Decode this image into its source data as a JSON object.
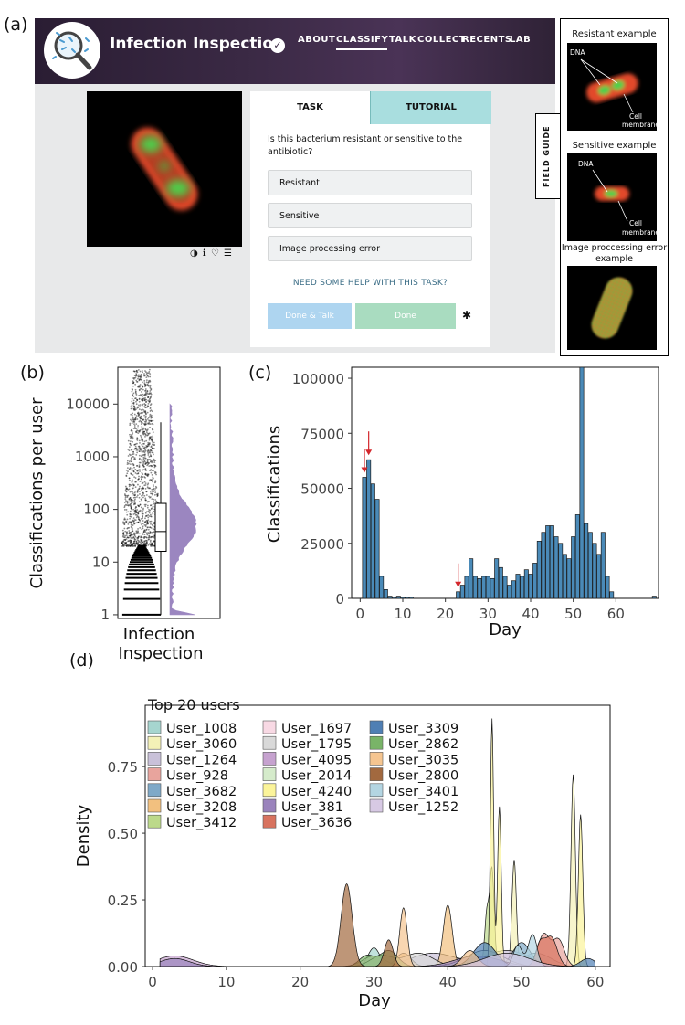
{
  "panel_labels": {
    "a": "(a)",
    "b": "(b)",
    "c": "(c)",
    "d": "(d)"
  },
  "zooniverse": {
    "project_title": "Infection Inspection",
    "nav": [
      "ABOUT",
      "CLASSIFY",
      "TALK",
      "COLLECT",
      "RECENTS",
      "LAB"
    ],
    "tabs": {
      "task": "TASK",
      "tutorial": "TUTORIAL"
    },
    "question": "Is this bacterium resistant or sensitive to the antibiotic?",
    "answers": [
      "Resistant",
      "Sensitive",
      "Image processing error"
    ],
    "help_link": "NEED SOME HELP WITH THIS TASK?",
    "done_talk": "Done & Talk",
    "done": "Done",
    "tools": "◑ ℹ ♡ ☰",
    "settings_icon": "✱",
    "field_guide_tab": "FIELD GUIDE",
    "field_guide": {
      "resistant_title": "Resistant example",
      "sensitive_title": "Sensitive example",
      "error_title": "Image proccessing error example",
      "dna_label": "DNA",
      "cell_label_1": "Cell",
      "cell_label_2": "membrane"
    },
    "colors": {
      "header": "#3a2944",
      "tutorial_tab": "#a9dedf",
      "done_talk": "#aed5f0",
      "done": "#a9dcc0"
    }
  },
  "chart_data": [
    {
      "id": "b",
      "type": "scatter",
      "xlabel": "Infection Inspection",
      "ylabel": "Classifications per user",
      "yscale": "log",
      "ylim": [
        1,
        50000
      ],
      "yticks": [
        "1",
        "10",
        "100",
        "1000",
        "10000"
      ],
      "box": {
        "min": 1,
        "q1": 16,
        "median": 38,
        "q3": 130,
        "max": 4500
      },
      "max_point": 45000,
      "color": "#9b86c0"
    },
    {
      "id": "c",
      "type": "bar",
      "xlabel": "Day",
      "ylabel": "Classifications",
      "ylim": [
        0,
        105000
      ],
      "xlim": [
        -2,
        70
      ],
      "xticks": [
        "0",
        "10",
        "20",
        "30",
        "40",
        "50",
        "60"
      ],
      "yticks": [
        "0",
        "25000",
        "50000",
        "75000",
        "100000"
      ],
      "color": "#4a8ab8",
      "arrow_days": [
        1,
        2,
        23
      ],
      "x": [
        1,
        2,
        3,
        4,
        5,
        6,
        7,
        8,
        9,
        10,
        11,
        12,
        23,
        24,
        25,
        26,
        27,
        28,
        29,
        30,
        31,
        32,
        33,
        34,
        35,
        36,
        37,
        38,
        39,
        40,
        41,
        42,
        43,
        44,
        45,
        46,
        47,
        48,
        49,
        50,
        51,
        52,
        53,
        54,
        55,
        56,
        57,
        58,
        59,
        69
      ],
      "values": [
        55000,
        63000,
        52000,
        45000,
        10000,
        4000,
        1000,
        500,
        1000,
        500,
        500,
        500,
        3000,
        6000,
        10000,
        18000,
        10000,
        9000,
        10000,
        10000,
        9000,
        18000,
        14000,
        10000,
        6000,
        8000,
        11000,
        10000,
        13000,
        11000,
        16000,
        26000,
        30000,
        33000,
        33000,
        28000,
        25000,
        20000,
        18000,
        28000,
        38000,
        105000,
        34000,
        30000,
        25000,
        20000,
        30000,
        10000,
        3000,
        1000
      ]
    },
    {
      "id": "d",
      "type": "area",
      "xlabel": "Day",
      "ylabel": "Density",
      "xlim": [
        -1,
        62
      ],
      "ylim": [
        0,
        0.98
      ],
      "xticks": [
        "0",
        "10",
        "20",
        "30",
        "40",
        "50",
        "60"
      ],
      "yticks": [
        "0.00",
        "0.25",
        "0.50",
        "0.75"
      ],
      "legend_title": "Top 20 users",
      "legend_position": "top-left",
      "series": [
        {
          "name": "User_1008",
          "color": "#a6d5cf",
          "peaks": [
            [
              30,
              0.07,
              0.8
            ],
            [
              52,
              0.05,
              2
            ]
          ]
        },
        {
          "name": "User_3060",
          "color": "#f3f1b7",
          "peaks": [
            [
              57,
              0.72,
              0.3
            ],
            [
              49,
              0.4,
              0.3
            ]
          ]
        },
        {
          "name": "User_1264",
          "color": "#c9c1d9",
          "peaks": [
            [
              38,
              0.05,
              3
            ],
            [
              48,
              0.06,
              3
            ]
          ]
        },
        {
          "name": "User_928",
          "color": "#e8a49d",
          "peaks": [
            [
              53,
              0.12,
              0.8
            ],
            [
              55,
              0.1,
              0.8
            ]
          ]
        },
        {
          "name": "User_3682",
          "color": "#7fa9c8",
          "peaks": [
            [
              50,
              0.09,
              1.2
            ]
          ]
        },
        {
          "name": "User_3208",
          "color": "#f2c07f",
          "peaks": [
            [
              40,
              0.23,
              0.6
            ],
            [
              34,
              0.05,
              1
            ]
          ]
        },
        {
          "name": "User_3412",
          "color": "#bcd98a",
          "peaks": [
            [
              46,
              0.36,
              0.3
            ],
            [
              45.3,
              0.2,
              0.3
            ]
          ]
        },
        {
          "name": "User_1697",
          "color": "#f8d9e4",
          "peaks": [
            [
              30,
              0.04,
              1.5
            ]
          ]
        },
        {
          "name": "User_1795",
          "color": "#d9d9d9",
          "peaks": [
            [
              36,
              0.05,
              2
            ],
            [
              31,
              0.04,
              1.5
            ]
          ]
        },
        {
          "name": "User_4095",
          "color": "#c6a2cf",
          "peaks": [
            [
              3,
              0.04,
              2.5
            ]
          ]
        },
        {
          "name": "User_2014",
          "color": "#d5ebcb",
          "peaks": [
            [
              45,
              0.06,
              2.5
            ]
          ]
        },
        {
          "name": "User_4240",
          "color": "#fbf49a",
          "peaks": [
            [
              46,
              0.93,
              0.22
            ],
            [
              58,
              0.57,
              0.3
            ],
            [
              47,
              0.6,
              0.25
            ]
          ]
        },
        {
          "name": "User_381",
          "color": "#9a83bc",
          "peaks": [
            [
              44,
              0.04,
              3
            ],
            [
              3,
              0.03,
              2
            ]
          ]
        },
        {
          "name": "User_3636",
          "color": "#d8735f",
          "peaks": [
            [
              54,
              0.11,
              0.8
            ],
            [
              52.5,
              0.08,
              0.6
            ]
          ]
        },
        {
          "name": "User_3309",
          "color": "#4f7fb4",
          "peaks": [
            [
              45,
              0.09,
              1.5
            ],
            [
              59,
              0.03,
              1
            ]
          ]
        },
        {
          "name": "User_2862",
          "color": "#79b468",
          "peaks": [
            [
              32,
              0.06,
              1.2
            ],
            [
              29,
              0.04,
              1
            ]
          ]
        },
        {
          "name": "User_3035",
          "color": "#f5c590",
          "peaks": [
            [
              34,
              0.22,
              0.5
            ],
            [
              43,
              0.06,
              1
            ]
          ]
        },
        {
          "name": "User_2800",
          "color": "#a2693f",
          "peaks": [
            [
              26.3,
              0.31,
              0.75
            ],
            [
              32,
              0.1,
              0.6
            ]
          ]
        },
        {
          "name": "User_3401",
          "color": "#b3d5e2",
          "peaks": [
            [
              51.5,
              0.12,
              0.6
            ],
            [
              49.5,
              0.08,
              0.6
            ]
          ]
        },
        {
          "name": "User_1252",
          "color": "#d7c9e4",
          "peaks": [
            [
              48,
              0.05,
              3
            ]
          ]
        }
      ]
    }
  ]
}
